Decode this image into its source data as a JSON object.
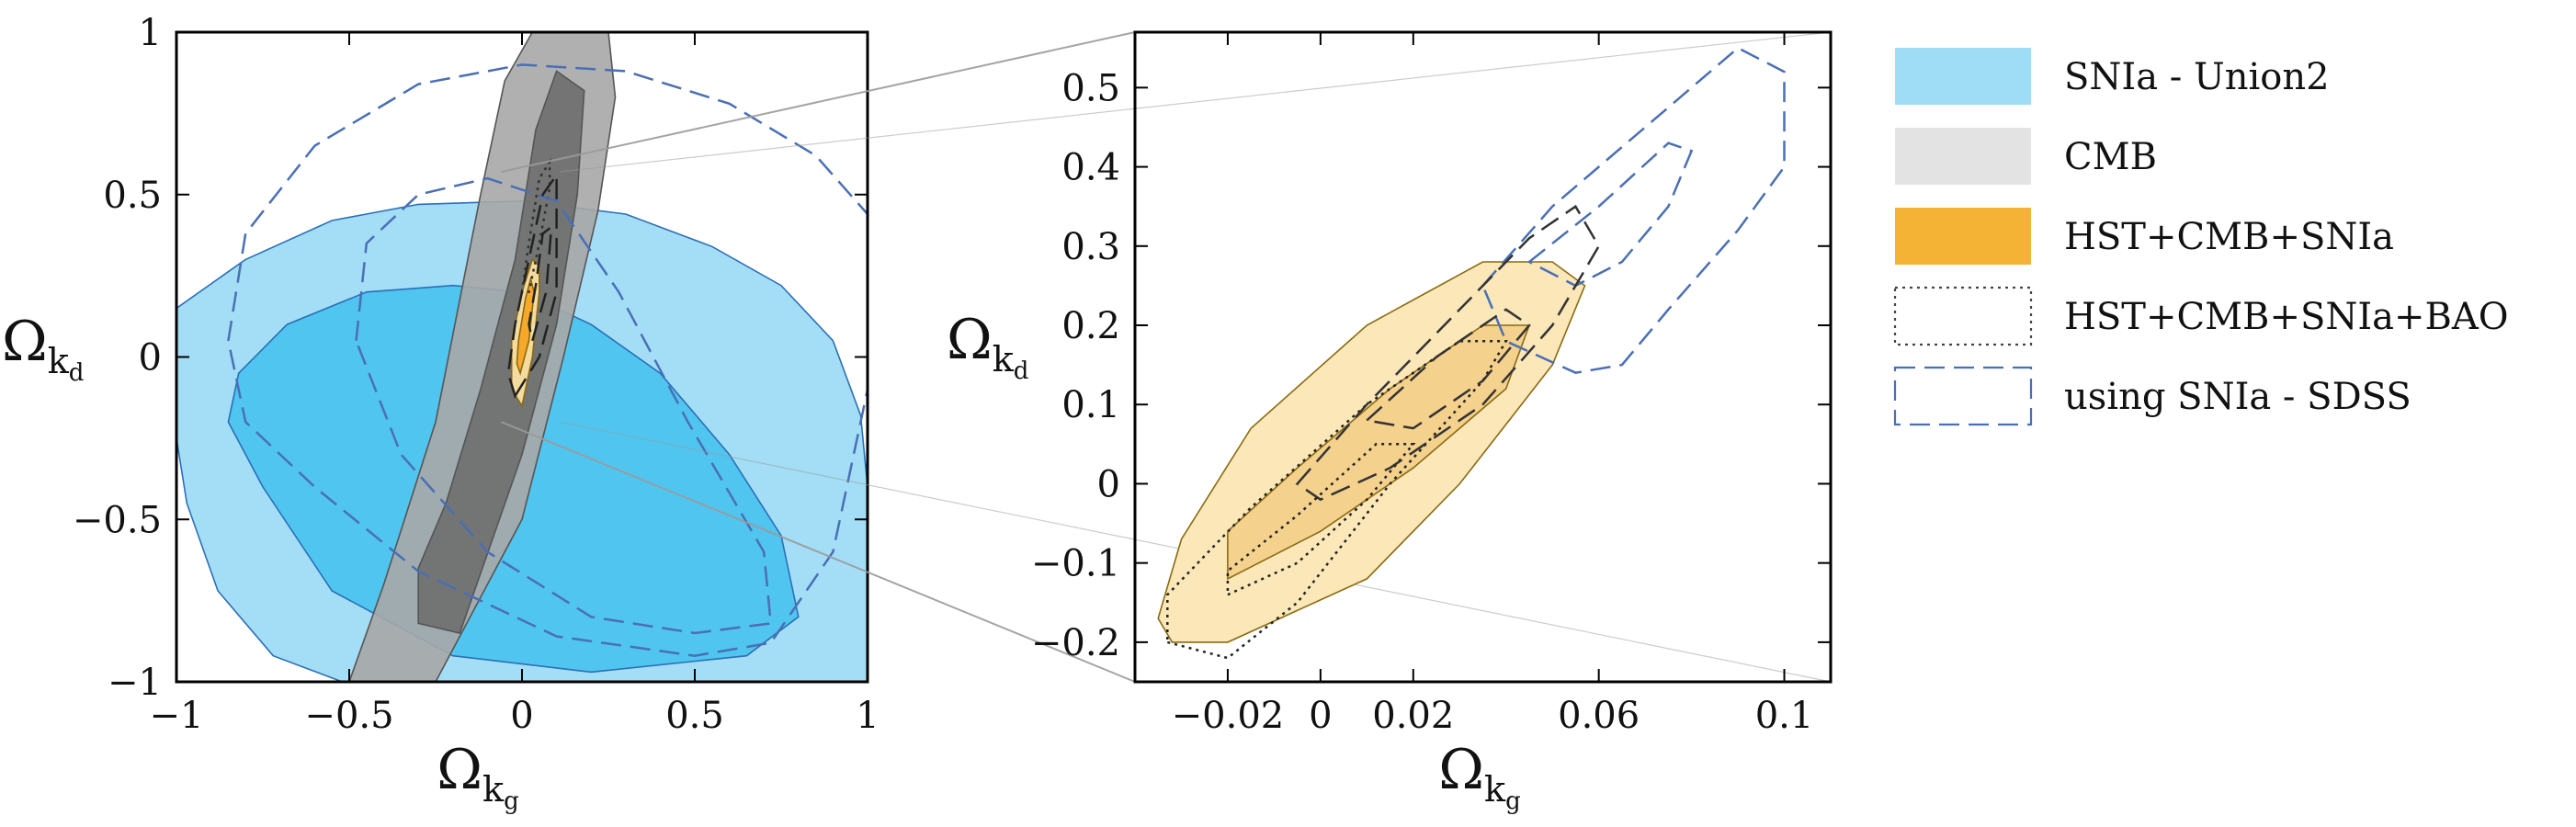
{
  "chart_data": [
    {
      "type": "contour",
      "panel": "left",
      "xlabel": "Ω",
      "xlabel_sub": "k",
      "xlabel_subsub": "g",
      "ylabel": "Ω",
      "ylabel_sub": "k",
      "ylabel_subsub": "d",
      "xlim": [
        -1,
        1
      ],
      "ylim": [
        -1,
        1
      ],
      "xticks": [
        -1,
        -0.5,
        0,
        0.5,
        1
      ],
      "xtick_labels": [
        "−1",
        "−0.5",
        "0",
        "0.5",
        "1"
      ],
      "yticks": [
        -1,
        -0.5,
        0,
        0.5,
        1
      ],
      "ytick_labels": [
        "−1",
        "−0.5",
        "0",
        "0.5",
        "1"
      ],
      "grid": false,
      "series": [
        {
          "ref": "SNIa - Union2",
          "level": "outer",
          "color": "#9fdcf5",
          "points": [
            [
              -1,
              0.15
            ],
            [
              -0.8,
              0.3
            ],
            [
              -0.55,
              0.42
            ],
            [
              -0.3,
              0.47
            ],
            [
              0,
              0.48
            ],
            [
              0.3,
              0.44
            ],
            [
              0.55,
              0.34
            ],
            [
              0.75,
              0.22
            ],
            [
              0.9,
              0.05
            ],
            [
              0.98,
              -0.18
            ],
            [
              1,
              -0.4
            ],
            [
              1,
              -1
            ],
            [
              -0.52,
              -1
            ],
            [
              -0.72,
              -0.92
            ],
            [
              -0.88,
              -0.72
            ],
            [
              -0.97,
              -0.45
            ],
            [
              -1,
              -0.25
            ]
          ]
        },
        {
          "ref": "SNIa - Union2",
          "level": "inner",
          "color": "#4cc3ee",
          "points": [
            [
              -0.82,
              -0.05
            ],
            [
              -0.68,
              0.1
            ],
            [
              -0.45,
              0.2
            ],
            [
              -0.2,
              0.22
            ],
            [
              0,
              0.2
            ],
            [
              0.2,
              0.1
            ],
            [
              0.4,
              -0.05
            ],
            [
              0.6,
              -0.3
            ],
            [
              0.75,
              -0.55
            ],
            [
              0.8,
              -0.8
            ],
            [
              0.65,
              -0.92
            ],
            [
              0.2,
              -0.97
            ],
            [
              -0.2,
              -0.92
            ],
            [
              -0.55,
              -0.72
            ],
            [
              -0.75,
              -0.4
            ],
            [
              -0.85,
              -0.2
            ]
          ]
        },
        {
          "ref": "CMB",
          "level": "outer",
          "color": "#a7a7a7",
          "points": [
            [
              -0.5,
              -1
            ],
            [
              -0.25,
              -1
            ],
            [
              0,
              -0.5
            ],
            [
              0.12,
              0
            ],
            [
              0.22,
              0.45
            ],
            [
              0.27,
              0.8
            ],
            [
              0.25,
              1
            ],
            [
              0.03,
              1
            ],
            [
              -0.05,
              0.85
            ],
            [
              -0.12,
              0.5
            ],
            [
              -0.25,
              -0.2
            ],
            [
              -0.4,
              -0.7
            ]
          ]
        },
        {
          "ref": "CMB",
          "level": "inner",
          "color": "#6e6e6e",
          "points": [
            [
              -0.3,
              -0.82
            ],
            [
              -0.18,
              -0.85
            ],
            [
              0,
              -0.3
            ],
            [
              0.1,
              0.1
            ],
            [
              0.16,
              0.5
            ],
            [
              0.18,
              0.82
            ],
            [
              0.1,
              0.88
            ],
            [
              0.04,
              0.7
            ],
            [
              -0.02,
              0.3
            ],
            [
              -0.12,
              -0.1
            ],
            [
              -0.22,
              -0.45
            ],
            [
              -0.3,
              -0.65
            ]
          ]
        },
        {
          "ref": "HST+CMB+SNIa",
          "level": "outer",
          "color": "#fbe0a2",
          "points": [
            [
              0,
              -0.15
            ],
            [
              0.03,
              0
            ],
            [
              0.05,
              0.2
            ],
            [
              0.05,
              0.28
            ],
            [
              0.03,
              0.3
            ],
            [
              0,
              0.2
            ],
            [
              -0.03,
              0.05
            ],
            [
              -0.03,
              -0.1
            ]
          ]
        },
        {
          "ref": "HST+CMB+SNIa",
          "level": "inner",
          "color": "#f5a623",
          "points": [
            [
              -0.005,
              -0.05
            ],
            [
              0.02,
              0.05
            ],
            [
              0.035,
              0.2
            ],
            [
              0.025,
              0.24
            ],
            [
              0.01,
              0.18
            ],
            [
              -0.01,
              0.05
            ],
            [
              -0.015,
              -0.02
            ]
          ]
        },
        {
          "ref": "HST+CMB+SNIa+BAO",
          "level": "outer",
          "style": "dotted",
          "points": [
            [
              0.0,
              0.2
            ],
            [
              0.02,
              0.35
            ],
            [
              0.05,
              0.55
            ],
            [
              0.08,
              0.6
            ],
            [
              0.08,
              0.52
            ],
            [
              0.05,
              0.35
            ],
            [
              0.02,
              0.2
            ]
          ]
        },
        {
          "ref": "using SNIa - SDSS",
          "level": "outer",
          "style": "dashed",
          "color": "#4a6fb5",
          "points": [
            [
              -0.85,
              0.05
            ],
            [
              -0.8,
              0.38
            ],
            [
              -0.6,
              0.65
            ],
            [
              -0.3,
              0.84
            ],
            [
              0,
              0.9
            ],
            [
              0.3,
              0.88
            ],
            [
              0.6,
              0.78
            ],
            [
              0.85,
              0.62
            ],
            [
              1,
              0.44
            ],
            [
              1,
              -0.1
            ],
            [
              0.9,
              -0.6
            ],
            [
              0.72,
              -0.88
            ],
            [
              0.5,
              -0.92
            ],
            [
              0.1,
              -0.86
            ],
            [
              -0.3,
              -0.66
            ],
            [
              -0.6,
              -0.4
            ],
            [
              -0.8,
              -0.2
            ]
          ]
        },
        {
          "ref": "using SNIa - SDSS",
          "level": "inner",
          "style": "dashed",
          "color": "#4a6fb5",
          "points": [
            [
              -0.48,
              0.05
            ],
            [
              -0.45,
              0.35
            ],
            [
              -0.3,
              0.5
            ],
            [
              -0.1,
              0.55
            ],
            [
              0.1,
              0.48
            ],
            [
              0.28,
              0.2
            ],
            [
              0.48,
              -0.2
            ],
            [
              0.7,
              -0.6
            ],
            [
              0.72,
              -0.82
            ],
            [
              0.5,
              -0.85
            ],
            [
              0.2,
              -0.8
            ],
            [
              -0.1,
              -0.6
            ],
            [
              -0.35,
              -0.3
            ]
          ]
        },
        {
          "ref": "using SNIa - SDSS",
          "level": "tight-outer",
          "style": "dashed",
          "color": "#222222",
          "points": [
            [
              -0.02,
              -0.12
            ],
            [
              0.05,
              0
            ],
            [
              0.1,
              0.2
            ],
            [
              0.1,
              0.56
            ],
            [
              0.06,
              0.5
            ],
            [
              0.02,
              0.3
            ],
            [
              -0.02,
              0.1
            ],
            [
              -0.04,
              -0.05
            ]
          ]
        },
        {
          "ref": "using SNIa - SDSS",
          "level": "tight-inner",
          "style": "dashed",
          "color": "#222222",
          "points": [
            [
              0.03,
              0.05
            ],
            [
              0.07,
              0.2
            ],
            [
              0.085,
              0.4
            ],
            [
              0.06,
              0.38
            ],
            [
              0.04,
              0.22
            ],
            [
              0.02,
              0.1
            ]
          ]
        }
      ],
      "zoom_box": {
        "x": [
          -0.06,
          0.11
        ],
        "y": [
          -0.2,
          0.57
        ]
      }
    },
    {
      "type": "contour",
      "panel": "right",
      "xlabel": "Ω",
      "xlabel_sub": "k",
      "xlabel_subsub": "g",
      "ylabel": "Ω",
      "ylabel_sub": "k",
      "ylabel_subsub": "d",
      "xlim": [
        -0.04,
        0.11
      ],
      "ylim": [
        -0.25,
        0.57
      ],
      "xticks": [
        -0.02,
        0,
        0.02,
        0.06,
        0.1
      ],
      "xtick_labels": [
        "−0.02",
        "0",
        "0.02",
        "0.06",
        "0.1"
      ],
      "yticks": [
        -0.2,
        -0.1,
        0,
        0.1,
        0.2,
        0.3,
        0.4,
        0.5
      ],
      "ytick_labels": [
        "−0.2",
        "−0.1",
        "0",
        "0.1",
        "0.2",
        "0.3",
        "0.4",
        "0.5"
      ],
      "grid": false,
      "series": [
        {
          "ref": "HST+CMB+SNIa",
          "level": "outer",
          "color": "#fbe6b4",
          "points": [
            [
              -0.032,
              -0.2
            ],
            [
              -0.02,
              -0.2
            ],
            [
              0.01,
              -0.12
            ],
            [
              0.03,
              0
            ],
            [
              0.05,
              0.15
            ],
            [
              0.057,
              0.25
            ],
            [
              0.05,
              0.28
            ],
            [
              0.035,
              0.28
            ],
            [
              0.01,
              0.2
            ],
            [
              -0.015,
              0.07
            ],
            [
              -0.03,
              -0.07
            ],
            [
              -0.035,
              -0.17
            ]
          ]
        },
        {
          "ref": "HST+CMB+SNIa",
          "level": "inner",
          "color": "#f3d08a",
          "points": [
            [
              -0.02,
              -0.12
            ],
            [
              0,
              -0.06
            ],
            [
              0.02,
              0.02
            ],
            [
              0.04,
              0.12
            ],
            [
              0.045,
              0.2
            ],
            [
              0.035,
              0.2
            ],
            [
              0.015,
              0.12
            ],
            [
              -0.005,
              0.02
            ],
            [
              -0.02,
              -0.06
            ]
          ]
        },
        {
          "ref": "HST+CMB+SNIa+BAO",
          "level": "outer",
          "style": "dotted",
          "color": "#222222",
          "points": [
            [
              -0.033,
              -0.2
            ],
            [
              -0.02,
              -0.22
            ],
            [
              -0.005,
              -0.15
            ],
            [
              0.015,
              0
            ],
            [
              0.035,
              0.13
            ],
            [
              0.04,
              0.18
            ],
            [
              0.03,
              0.18
            ],
            [
              0.01,
              0.1
            ],
            [
              -0.015,
              -0.03
            ],
            [
              -0.033,
              -0.14
            ]
          ]
        },
        {
          "ref": "HST+CMB+SNIa+BAO",
          "level": "inner",
          "style": "dotted",
          "color": "#222222",
          "points": [
            [
              -0.02,
              -0.14
            ],
            [
              -0.005,
              -0.1
            ],
            [
              0.01,
              -0.02
            ],
            [
              0.02,
              0.05
            ],
            [
              0.012,
              0.05
            ],
            [
              -0.005,
              -0.04
            ],
            [
              -0.02,
              -0.11
            ]
          ]
        },
        {
          "ref": "using SNIa - SDSS",
          "level": "outer",
          "style": "dashed",
          "color": "#4a6fb5",
          "points": [
            [
              0.035,
              0.25
            ],
            [
              0.05,
              0.35
            ],
            [
              0.07,
              0.45
            ],
            [
              0.09,
              0.55
            ],
            [
              0.1,
              0.52
            ],
            [
              0.1,
              0.4
            ],
            [
              0.09,
              0.32
            ],
            [
              0.075,
              0.22
            ],
            [
              0.065,
              0.15
            ],
            [
              0.055,
              0.14
            ],
            [
              0.04,
              0.18
            ]
          ]
        },
        {
          "ref": "using SNIa - SDSS",
          "level": "inner",
          "style": "dashed",
          "color": "#4a6fb5",
          "points": [
            [
              0.045,
              0.28
            ],
            [
              0.06,
              0.35
            ],
            [
              0.075,
              0.43
            ],
            [
              0.08,
              0.42
            ],
            [
              0.075,
              0.35
            ],
            [
              0.065,
              0.28
            ],
            [
              0.055,
              0.25
            ]
          ]
        },
        {
          "ref": "using SNIa - SDSS",
          "level": "tight-outer",
          "style": "dashed",
          "color": "#333333",
          "points": [
            [
              -0.005,
              0
            ],
            [
              0.01,
              0.1
            ],
            [
              0.03,
              0.22
            ],
            [
              0.045,
              0.31
            ],
            [
              0.055,
              0.35
            ],
            [
              0.06,
              0.3
            ],
            [
              0.05,
              0.2
            ],
            [
              0.035,
              0.1
            ],
            [
              0.015,
              0.02
            ],
            [
              0.0,
              -0.02
            ]
          ]
        },
        {
          "ref": "using SNIa - SDSS",
          "level": "tight-inner",
          "style": "dashed",
          "color": "#333333",
          "points": [
            [
              0.01,
              0.08
            ],
            [
              0.025,
              0.16
            ],
            [
              0.04,
              0.22
            ],
            [
              0.045,
              0.2
            ],
            [
              0.035,
              0.13
            ],
            [
              0.02,
              0.07
            ]
          ]
        }
      ]
    }
  ],
  "legend": {
    "placement": "right",
    "items": [
      {
        "label": "SNIa - Union2",
        "swatch": "fill",
        "color": "#9fdcf5"
      },
      {
        "label": "CMB",
        "swatch": "fill",
        "color": "#e3e3e3"
      },
      {
        "label": "HST+CMB+SNIa",
        "swatch": "fill",
        "color": "#f5b335"
      },
      {
        "label": "HST+CMB+SNIa+BAO",
        "swatch": "dotted",
        "color": "#444444"
      },
      {
        "label": "using SNIa - SDSS",
        "swatch": "dashed",
        "color": "#4a6fb5"
      }
    ]
  }
}
